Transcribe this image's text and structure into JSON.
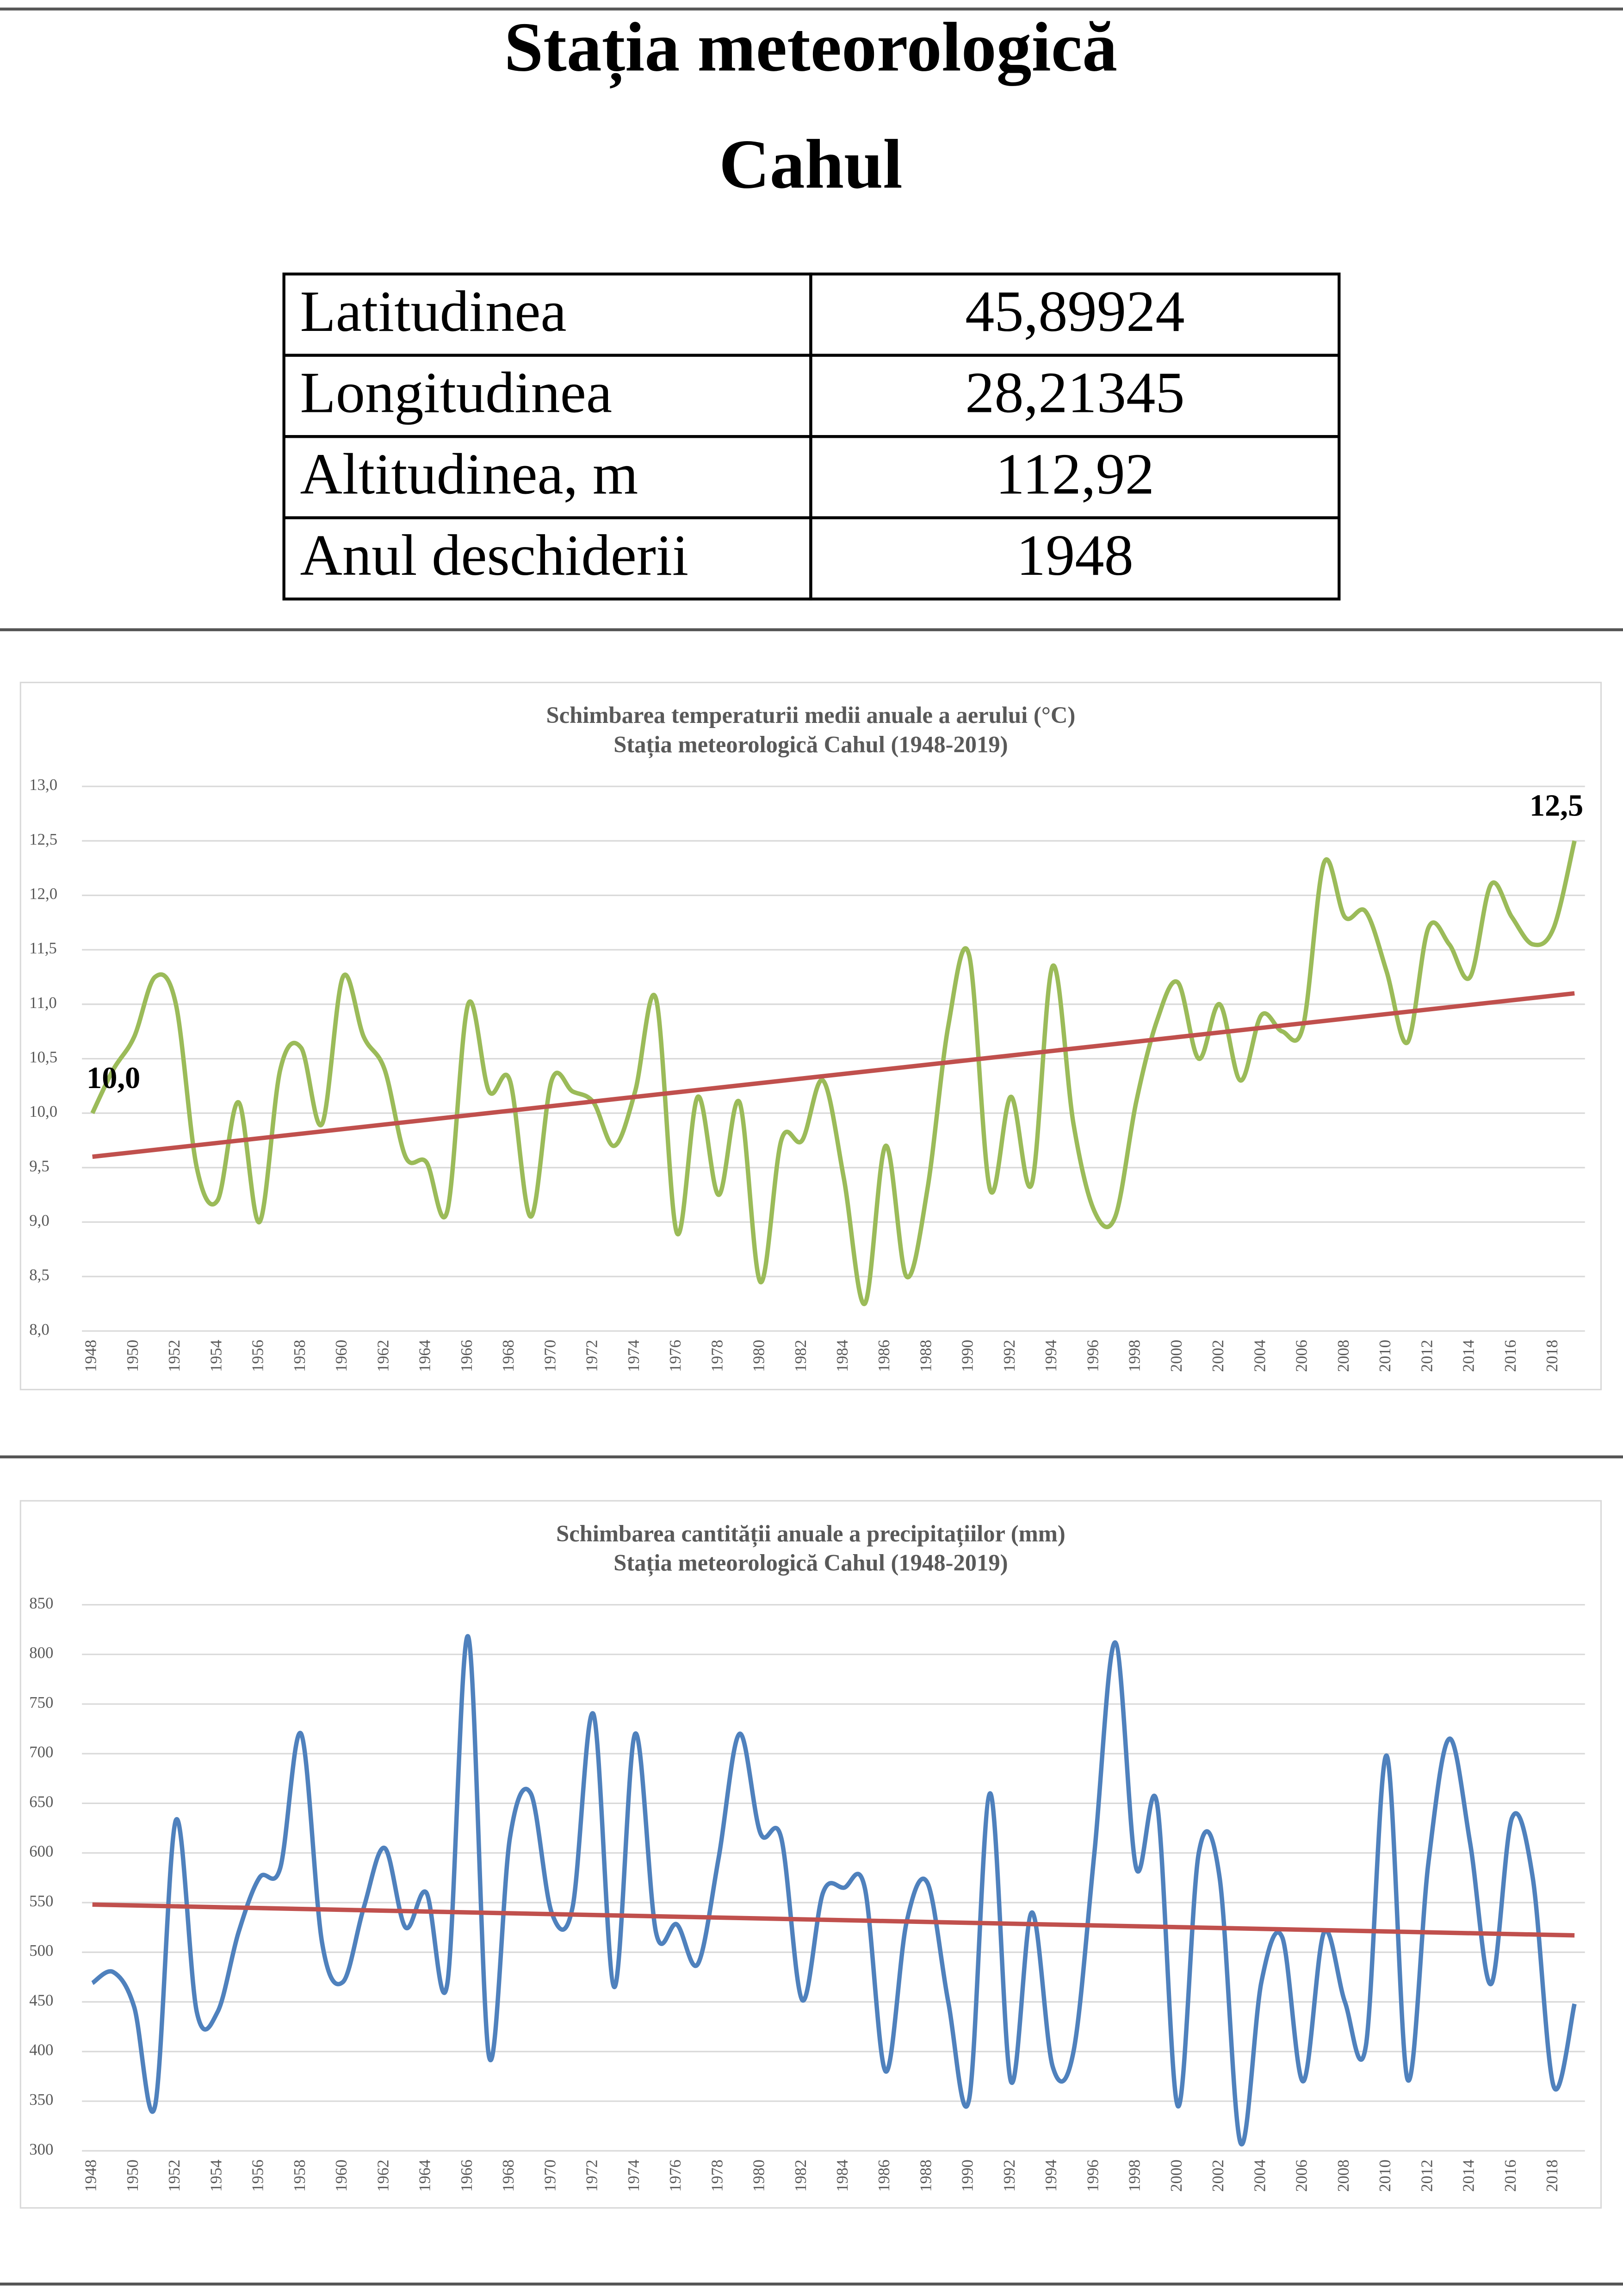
{
  "header": {
    "title": "Stația meteorologică",
    "subtitle": "Cahul"
  },
  "table": {
    "rows": [
      [
        "Latitudinea",
        "45,89924"
      ],
      [
        "Longitudinea",
        "28,21345"
      ],
      [
        "Altitudinea, m",
        "112,92"
      ],
      [
        "Anul deschiderii",
        "1948"
      ]
    ]
  },
  "chart_data": [
    {
      "type": "line",
      "title": "Schimbarea temperaturii medii anuale a aerului (°C)",
      "subtitle": "Stația meteorologică Cahul (1948-2019)",
      "categories": [
        "1948",
        null,
        "1950",
        null,
        "1952",
        null,
        "1954",
        null,
        "1956",
        null,
        "1958",
        null,
        "1960",
        null,
        "1962",
        null,
        "1964",
        null,
        "1966",
        null,
        "1968",
        null,
        "1970",
        null,
        "1972",
        null,
        "1974",
        null,
        "1976",
        null,
        "1978",
        null,
        "1980",
        null,
        "1982",
        null,
        "1984",
        null,
        "1986",
        null,
        "1988",
        null,
        "1990",
        null,
        "1992",
        null,
        "1994",
        null,
        "1996",
        null,
        "1998",
        null,
        "2000",
        null,
        "2002",
        null,
        "2004",
        null,
        "2006",
        null,
        "2008",
        null,
        "2010",
        null,
        "2012",
        null,
        "2014",
        null,
        "2016",
        null,
        "2018",
        null
      ],
      "values": [
        10.0,
        10.4,
        10.7,
        11.25,
        11.0,
        9.5,
        9.2,
        10.1,
        9.0,
        10.4,
        10.6,
        9.9,
        11.25,
        10.7,
        10.4,
        9.6,
        9.55,
        9.1,
        11.0,
        10.2,
        10.3,
        9.05,
        10.3,
        10.2,
        10.1,
        9.7,
        10.2,
        11.05,
        8.9,
        10.15,
        9.25,
        10.1,
        8.45,
        9.75,
        9.75,
        10.3,
        9.4,
        8.25,
        9.7,
        8.5,
        9.3,
        10.8,
        11.45,
        9.3,
        10.15,
        9.35,
        11.35,
        9.9,
        9.1,
        9.05,
        10.1,
        10.85,
        11.2,
        10.5,
        11.0,
        10.3,
        10.9,
        10.75,
        10.8,
        12.3,
        11.8,
        11.85,
        11.3,
        10.65,
        11.7,
        11.55,
        11.25,
        12.1,
        11.8,
        11.55,
        11.7,
        12.5
      ],
      "value_labels": [
        "10,0",
        null,
        null,
        null,
        null,
        null,
        null,
        null,
        null,
        null,
        null,
        null,
        null,
        null,
        null,
        null,
        null,
        null,
        null,
        null,
        null,
        null,
        null,
        null,
        null,
        null,
        null,
        null,
        null,
        null,
        null,
        null,
        null,
        null,
        null,
        null,
        null,
        null,
        null,
        null,
        null,
        null,
        null,
        null,
        null,
        null,
        null,
        null,
        null,
        null,
        null,
        null,
        null,
        null,
        null,
        null,
        null,
        null,
        null,
        null,
        null,
        null,
        null,
        null,
        null,
        null,
        null,
        null,
        null,
        null,
        null,
        "12,5"
      ],
      "color": "#9bbb59",
      "trend": {
        "color": "#c0504d",
        "start": 9.6,
        "end": 11.1
      },
      "ylim": [
        8,
        13
      ],
      "yticks": [
        {
          "value": 8,
          "label": "8,0"
        },
        {
          "value": 8.5,
          "label": "8,5"
        },
        {
          "value": 9,
          "label": "9,0"
        },
        {
          "value": 9.5,
          "label": "9,5"
        },
        {
          "value": 10,
          "label": "10,0"
        },
        {
          "value": 10.5,
          "label": "10,5"
        },
        {
          "value": 11,
          "label": "11,0"
        },
        {
          "value": 11.5,
          "label": "11,5"
        },
        {
          "value": 12,
          "label": "12,0"
        },
        {
          "value": 12.5,
          "label": "12,5"
        },
        {
          "value": 13,
          "label": "13,0"
        }
      ],
      "grid": true
    },
    {
      "type": "line",
      "title": "Schimbarea cantității anuale a precipitațiilor (mm)",
      "subtitle": "Stația meteorologică Cahul (1948-2019)",
      "categories": [
        "1948",
        null,
        "1950",
        null,
        "1952",
        null,
        "1954",
        null,
        "1956",
        null,
        "1958",
        null,
        "1960",
        null,
        "1962",
        null,
        "1964",
        null,
        "1966",
        null,
        "1968",
        null,
        "1970",
        null,
        "1972",
        null,
        "1974",
        null,
        "1976",
        null,
        "1978",
        null,
        "1980",
        null,
        "1982",
        null,
        "1984",
        null,
        "1986",
        null,
        "1988",
        null,
        "1990",
        null,
        "1992",
        null,
        "1994",
        null,
        "1996",
        null,
        "1998",
        null,
        "2000",
        null,
        "2002",
        null,
        "2004",
        null,
        "2006",
        null,
        "2008",
        null,
        "2010",
        null,
        "2012",
        null,
        "2014",
        null,
        "2016",
        null,
        "2018",
        null
      ],
      "values": [
        469,
        480,
        445,
        345,
        633,
        440,
        440,
        520,
        575,
        585,
        720,
        510,
        470,
        545,
        605,
        525,
        560,
        468,
        818,
        395,
        615,
        660,
        540,
        545,
        740,
        465,
        720,
        520,
        528,
        488,
        595,
        720,
        620,
        615,
        452,
        560,
        565,
        565,
        380,
        530,
        570,
        450,
        352,
        660,
        370,
        540,
        385,
        400,
        600,
        812,
        585,
        650,
        345,
        600,
        575,
        308,
        470,
        515,
        370,
        520,
        450,
        405,
        698,
        372,
        590,
        715,
        610,
        468,
        635,
        575,
        365,
        448
      ],
      "color": "#4f81bd",
      "trend": {
        "color": "#c0504d",
        "start": 548,
        "end": 517
      },
      "ylim": [
        300,
        850
      ],
      "yticks": [
        300,
        350,
        400,
        450,
        500,
        550,
        600,
        650,
        700,
        750,
        800,
        850
      ],
      "grid": true
    }
  ]
}
